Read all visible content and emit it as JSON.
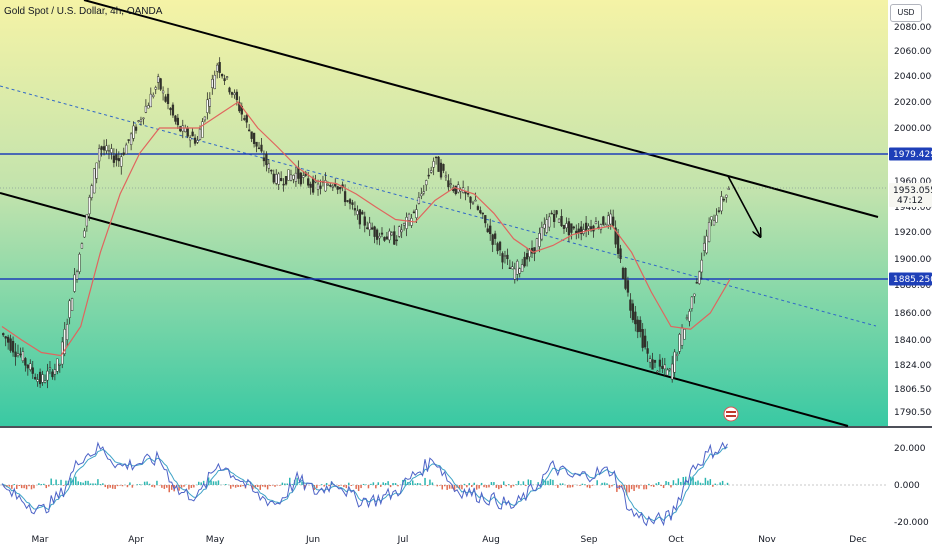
{
  "header": {
    "title": "Gold Spot / U.S. Dollar, 4h, OANDA",
    "currency": "USD"
  },
  "colors": {
    "bg_top": "#f5f3a6",
    "bg_bottom": "#39c9a3",
    "level_line": "#1e3fb8",
    "ma_line": "#e0655e",
    "up_candle": "#30302a",
    "down_candle": "#30302a",
    "channel": "#000000",
    "osc_fast": "#4e63c7",
    "osc_slow": "#3fa3c7",
    "hist_pos": "#2bb5b0",
    "hist_neg": "#e06c52"
  },
  "price_axis": {
    "ticks": [
      "2080.000",
      "2060.000",
      "2040.000",
      "2020.000",
      "2000.000",
      "1960.000",
      "1940.000",
      "1920.000",
      "1900.000",
      "1880.000",
      "1860.000",
      "1840.000",
      "1824.000",
      "1806.500",
      "1790.500"
    ],
    "tick_values": [
      2080,
      2060,
      2040,
      2020,
      2000,
      1960,
      1940,
      1920,
      1900,
      1880,
      1860,
      1840,
      1824,
      1806.5,
      1790.5
    ],
    "tags": [
      {
        "label": "1979.429",
        "value": 1979.429,
        "type": "level"
      },
      {
        "label": "1885.250",
        "value": 1885.25,
        "type": "level"
      },
      {
        "label": "1953.055",
        "sub": "47:12",
        "value": 1953.055,
        "type": "price"
      }
    ]
  },
  "oscillator_axis": {
    "ticks": [
      "20.000",
      "0.000",
      "-20.000"
    ],
    "tick_values": [
      20,
      0,
      -20
    ]
  },
  "time_axis": {
    "labels": [
      "Mar",
      "Apr",
      "May",
      "Jun",
      "Jul",
      "Aug",
      "Sep",
      "Oct",
      "Nov",
      "Dec"
    ]
  },
  "chart_data": {
    "type": "line",
    "title": "Gold Spot / U.S. Dollar, 4h, OANDA",
    "unit": "USD",
    "series": [
      {
        "kind": "price_close",
        "x": [
          "Feb 24",
          "Mar 1",
          "Mar 6",
          "Mar 10",
          "Mar 15",
          "Mar 20",
          "Mar 28",
          "Apr 5",
          "Apr 13",
          "Apr 20",
          "Apr 28",
          "May 4",
          "May 10",
          "May 17",
          "May 24",
          "May 31",
          "Jun 8",
          "Jun 15",
          "Jun 22",
          "Jun 29",
          "Jul 6",
          "Jul 13",
          "Jul 20",
          "Jul 27",
          "Aug 3",
          "Aug 10",
          "Aug 17",
          "Aug 24",
          "Aug 31",
          "Sep 7",
          "Sep 14",
          "Sep 21",
          "Sep 28",
          "Oct 3",
          "Oct 6",
          "Oct 10",
          "Oct 13",
          "Oct 17"
        ],
        "values": [
          1845,
          1830,
          1812,
          1825,
          1905,
          1985,
          1975,
          2005,
          2035,
          2000,
          1990,
          2050,
          2020,
          1985,
          1960,
          1965,
          1955,
          1960,
          1935,
          1920,
          1915,
          1935,
          1975,
          1955,
          1945,
          1915,
          1890,
          1905,
          1935,
          1920,
          1925,
          1930,
          1865,
          1825,
          1818,
          1862,
          1925,
          1955
        ]
      },
      {
        "kind": "moving_average",
        "values": [
          1850,
          1840,
          1832,
          1830,
          1850,
          1905,
          1950,
          1980,
          2000,
          2000,
          2000,
          2010,
          2020,
          2000,
          1985,
          1970,
          1960,
          1958,
          1950,
          1940,
          1930,
          1928,
          1945,
          1955,
          1950,
          1935,
          1915,
          1905,
          1910,
          1918,
          1922,
          1925,
          1905,
          1875,
          1850,
          1848,
          1860,
          1885
        ]
      }
    ],
    "oscillator": {
      "values": [
        -2,
        -8,
        -14,
        -5,
        15,
        20,
        10,
        12,
        14,
        -4,
        -6,
        12,
        4,
        -6,
        -10,
        3,
        -4,
        2,
        -8,
        -8,
        -4,
        6,
        14,
        -2,
        -5,
        -8,
        -12,
        -2,
        10,
        4,
        6,
        8,
        -15,
        -20,
        -17,
        8,
        18,
        22
      ],
      "ylim": [
        -23,
        27
      ]
    },
    "levels": [
      1979.429,
      1885.25
    ],
    "current_price": 1953.055,
    "countdown": "47:12",
    "ylim": [
      1783,
      2098
    ]
  }
}
